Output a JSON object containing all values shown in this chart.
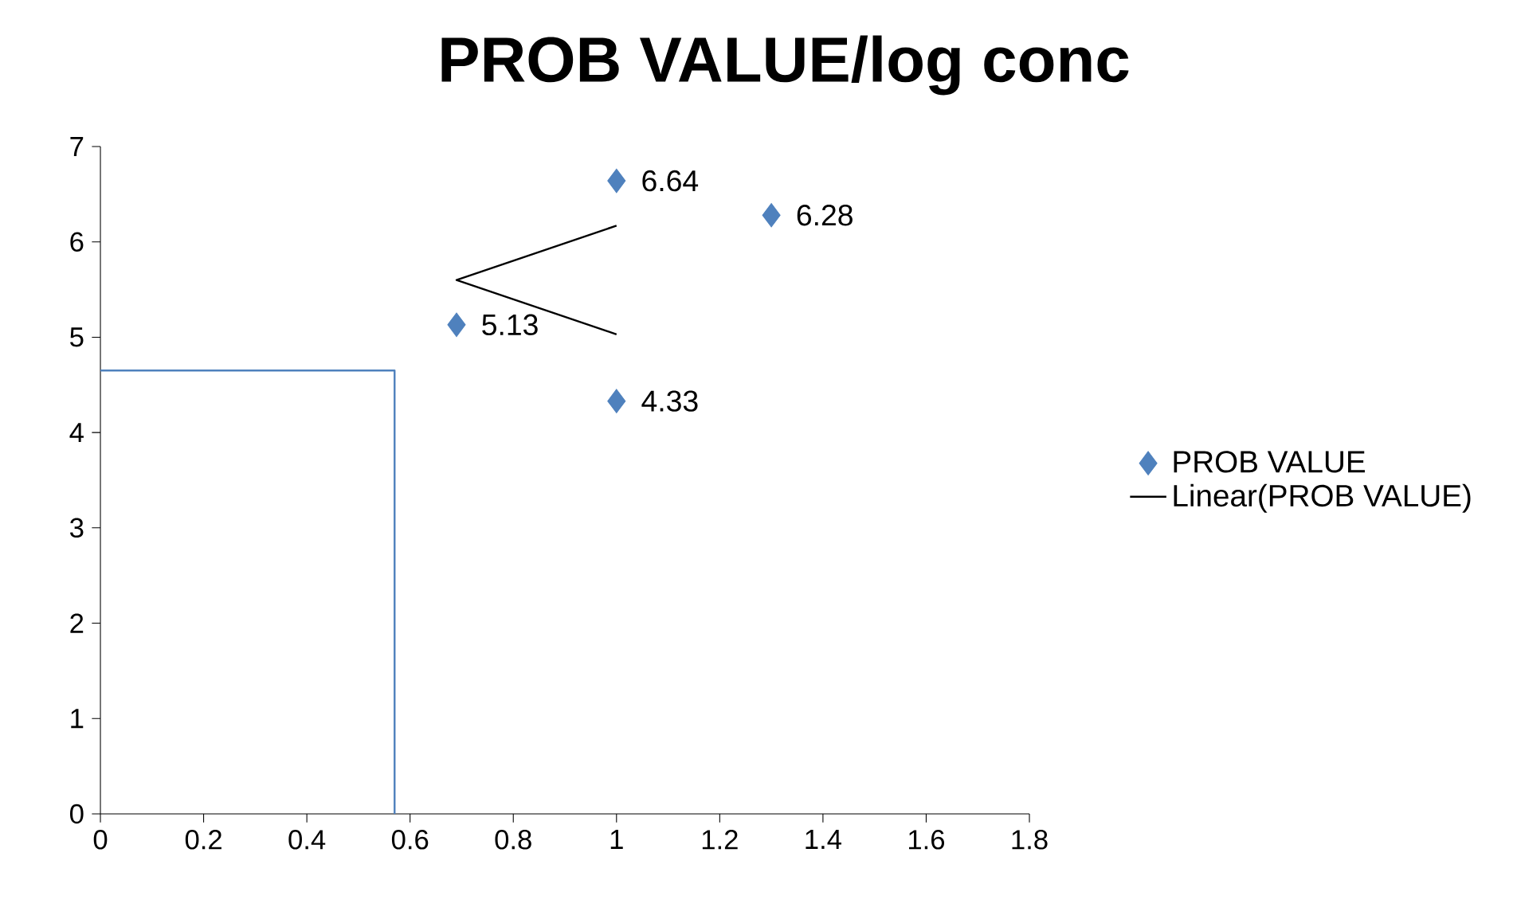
{
  "chart_data": {
    "type": "scatter",
    "title": "PROB VALUE/log conc",
    "series": [
      {
        "name": "PROB VALUE",
        "marker": "diamond",
        "color": "#4f81bd",
        "x": [
          0.69,
          1,
          1.3,
          1
        ],
        "values": [
          5.13,
          6.64,
          6.28,
          4.33
        ],
        "value_labels": [
          "5.13",
          "6.64",
          "6.28",
          "4.33"
        ]
      },
      {
        "name": "Linear(PROB VALUE)",
        "type": "line",
        "color": "#000000",
        "x": [
          1,
          0.69,
          1
        ],
        "values": [
          6.17,
          5.6,
          5.03
        ]
      },
      {
        "type": "line",
        "color": "#4f81bd",
        "x": [
          0,
          0.57,
          0.57
        ],
        "values": [
          4.65,
          4.65,
          0
        ]
      }
    ],
    "xlim": [
      0,
      1.8
    ],
    "xticks": [
      0,
      0.2,
      0.4,
      0.6,
      0.8,
      1,
      1.2,
      1.4,
      1.6,
      1.8
    ],
    "ylim": [
      0,
      7
    ],
    "yticks": [
      0,
      1,
      2,
      3,
      4,
      5,
      6,
      7
    ],
    "legend": "right",
    "grid": false
  }
}
